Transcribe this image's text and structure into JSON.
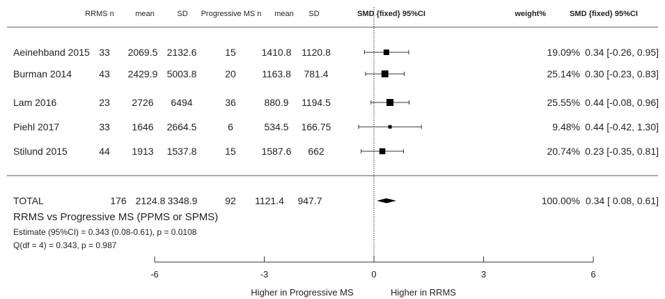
{
  "headers": {
    "rrms_n": "RRMS n",
    "rrms_mean": "mean",
    "rrms_sd": "SD",
    "prog_n": "Progressive MS n",
    "prog_mean": "mean",
    "prog_sd": "SD",
    "smd_plot": "SMD {fixed} 95%CI",
    "weight": "weight%",
    "smd_ci": "SMD {fixed} 95%CI"
  },
  "summary": {
    "title": "RRMS vs Progressive MS (PPMS or SPMS)",
    "estimate": "Estimate (95%CI) = 0.343 (0.08-0.61), p = 0.0108",
    "heterogeneity": "Q(df = 4) = 0.343, p = 0.987"
  },
  "axis": {
    "direction_left": "Higher in Progressive MS",
    "direction_right": "Higher in RRMS"
  },
  "chart_data": {
    "type": "forest",
    "x_ticks": [
      -6,
      -3,
      0,
      3,
      6
    ],
    "xlim": [
      -6,
      6
    ],
    "reference_line": 0,
    "studies": [
      {
        "study": "Aeinehband 2015",
        "rrms_n": "33",
        "rrms_mean": "2069.5",
        "rrms_sd": "2132.6",
        "prog_n": "15",
        "prog_mean": "1410.8",
        "prog_sd": "1120.8",
        "smd": 0.34,
        "ci_low": -0.26,
        "ci_high": 0.95,
        "weight": 19.09,
        "weight_text": "19.09%",
        "smd_text": "0.34 [-0.26, 0.95]"
      },
      {
        "study": "Burman 2014",
        "rrms_n": "43",
        "rrms_mean": "2429.9",
        "rrms_sd": "5003.8",
        "prog_n": "20",
        "prog_mean": "1163.8",
        "prog_sd": "781.4",
        "smd": 0.3,
        "ci_low": -0.23,
        "ci_high": 0.83,
        "weight": 25.14,
        "weight_text": "25.14%",
        "smd_text": "0.30 [-0.23, 0.83]"
      },
      {
        "study": "Lam 2016",
        "rrms_n": "23",
        "rrms_mean": "2726",
        "rrms_sd": "6494",
        "prog_n": "36",
        "prog_mean": "880.9",
        "prog_sd": "1194.5",
        "smd": 0.44,
        "ci_low": -0.08,
        "ci_high": 0.96,
        "weight": 25.55,
        "weight_text": "25.55%",
        "smd_text": "0.44 [-0.08, 0.96]"
      },
      {
        "study": "Piehl 2017",
        "rrms_n": "33",
        "rrms_mean": "1646",
        "rrms_sd": "2664.5",
        "prog_n": "6",
        "prog_mean": "534.5",
        "prog_sd": "166.75",
        "smd": 0.44,
        "ci_low": -0.42,
        "ci_high": 1.3,
        "weight": 9.48,
        "weight_text": "9.48%",
        "smd_text": "0.44 [-0.42, 1.30]"
      },
      {
        "study": "Stilund 2015",
        "rrms_n": "44",
        "rrms_mean": "1913",
        "rrms_sd": "1537.8",
        "prog_n": "15",
        "prog_mean": "1587.6",
        "prog_sd": "662",
        "smd": 0.23,
        "ci_low": -0.35,
        "ci_high": 0.81,
        "weight": 20.74,
        "weight_text": "20.74%",
        "smd_text": "0.23 [-0.35, 0.81]"
      }
    ],
    "total": {
      "study": "TOTAL",
      "rrms_n": "176",
      "rrms_mean": "2124.8",
      "rrms_sd": "3348.9",
      "prog_n": "92",
      "prog_mean": "1121.4",
      "prog_sd": "947.7",
      "smd": 0.34,
      "ci_low": 0.08,
      "ci_high": 0.61,
      "weight_text": "100.00%",
      "smd_text": "0.34 [ 0.08, 0.61]"
    }
  }
}
